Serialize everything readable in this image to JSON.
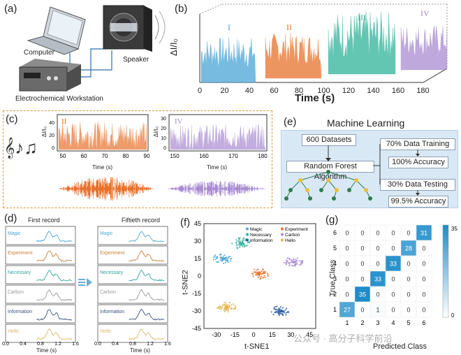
{
  "panels": {
    "a": {
      "label": "(a)",
      "computer": "Computer",
      "speaker": "Speaker",
      "workstation": "Electrochemical Workstation"
    },
    "b": {
      "label": "(b)",
      "ylabel": "ΔI/I₀",
      "xlabel": "Time (s)",
      "xticks": [
        "0",
        "20",
        "40",
        "60",
        "80",
        "100",
        "120",
        "140",
        "160",
        "180"
      ],
      "segments": [
        {
          "label": "I",
          "color": "#4aa6d6"
        },
        {
          "label": "II",
          "color": "#e8722c"
        },
        {
          "label": "III",
          "color": "#2fb39a"
        },
        {
          "label": "IV",
          "color": "#a98bd1"
        }
      ]
    },
    "c": {
      "label": "(c)",
      "left": {
        "tag": "II",
        "ylabel": "ΔI/I₀",
        "xlabel": "Time (s)",
        "xticks": [
          "50",
          "60",
          "70",
          "80",
          "90"
        ],
        "yticks": [
          "0",
          "20",
          "40"
        ],
        "color": "#e8722c"
      },
      "right": {
        "tag": "IV",
        "ylabel": "ΔI/I₀",
        "xlabel": "Time (s)",
        "xticks": [
          "150",
          "160",
          "170",
          "180"
        ],
        "yticks": [
          "0",
          "10",
          "20",
          "30"
        ],
        "color": "#a98bd1"
      }
    },
    "d": {
      "label": "(d)",
      "first_title": "First record",
      "fiftieth_title": "Fiftieth record",
      "words": [
        {
          "name": "Magic",
          "color": "#4aa6d6"
        },
        {
          "name": "Experiment",
          "color": "#c9803a"
        },
        {
          "name": "Necessary",
          "color": "#2fa89a"
        },
        {
          "name": "Carbon",
          "color": "#9a9a9a"
        },
        {
          "name": "Information",
          "color": "#3a4f7a"
        },
        {
          "name": "Hello",
          "color": "#d9b86a"
        }
      ],
      "xticks": [
        "0.0",
        "0.4",
        "0.8",
        "1.2",
        "1.6"
      ],
      "xlabel": "Time (s)"
    },
    "e": {
      "label": "(e)",
      "title": "Machine Learning",
      "datasets": "600 Datasets",
      "algorithm": "Random Forest Algorithm",
      "train": "70% Data Training",
      "train_acc": "100% Accuracy",
      "test": "30% Data Testing",
      "test_acc": "99.5% Accuracy"
    },
    "f": {
      "label": "(f)",
      "xlabel": "t-SNE1",
      "ylabel": "t-SNE2",
      "xticks": [
        "-30",
        "-15",
        "0",
        "15",
        "30",
        "45"
      ],
      "yticks": [
        "45",
        "30",
        "15",
        "0",
        "-15",
        "-30",
        "-45"
      ],
      "legend": [
        {
          "name": "Magic",
          "color": "#4aa6d6"
        },
        {
          "name": "Experiment",
          "color": "#e8722c"
        },
        {
          "name": "Necessary",
          "color": "#2fb39a"
        },
        {
          "name": "Carbon",
          "color": "#a98bd1"
        },
        {
          "name": "Information",
          "color": "#2a5fa0"
        },
        {
          "name": "Hello",
          "color": "#e0b24a"
        }
      ]
    },
    "g": {
      "label": "(g)",
      "xlabel": "Predicted Class",
      "ylabel": "True Class",
      "colorbar_max": "35",
      "colorbar_min": "0",
      "classes": [
        "1",
        "2",
        "3",
        "4",
        "5",
        "6"
      ]
    }
  },
  "chart_data": [
    {
      "type": "heatmap",
      "panel": "g",
      "xlabel": "Predicted Class",
      "ylabel": "True Class",
      "rows_true_class_6_to_1": [
        [
          0,
          0,
          0,
          0,
          0,
          31
        ],
        [
          0,
          0,
          0,
          0,
          28,
          0
        ],
        [
          0,
          0,
          0,
          33,
          0,
          0
        ],
        [
          0,
          0,
          33,
          0,
          0,
          0
        ],
        [
          0,
          35,
          0,
          0,
          0,
          0
        ],
        [
          27,
          0,
          1,
          0,
          0,
          0
        ]
      ],
      "colorbar": [
        0,
        35
      ]
    },
    {
      "type": "scatter",
      "panel": "f",
      "xlabel": "t-SNE1",
      "ylabel": "t-SNE2",
      "xlim": [
        -40,
        50
      ],
      "ylim": [
        -45,
        45
      ],
      "clusters": [
        {
          "name": "Magic",
          "center": [
            -25,
            15
          ]
        },
        {
          "name": "Experiment",
          "center": [
            5,
            2
          ]
        },
        {
          "name": "Necessary",
          "center": [
            -10,
            28
          ]
        },
        {
          "name": "Carbon",
          "center": [
            32,
            12
          ]
        },
        {
          "name": "Information",
          "center": [
            22,
            -30
          ]
        },
        {
          "name": "Hello",
          "center": [
            -22,
            -27
          ]
        }
      ]
    }
  ],
  "watermark": "公众号 · 高分子科学前沿"
}
